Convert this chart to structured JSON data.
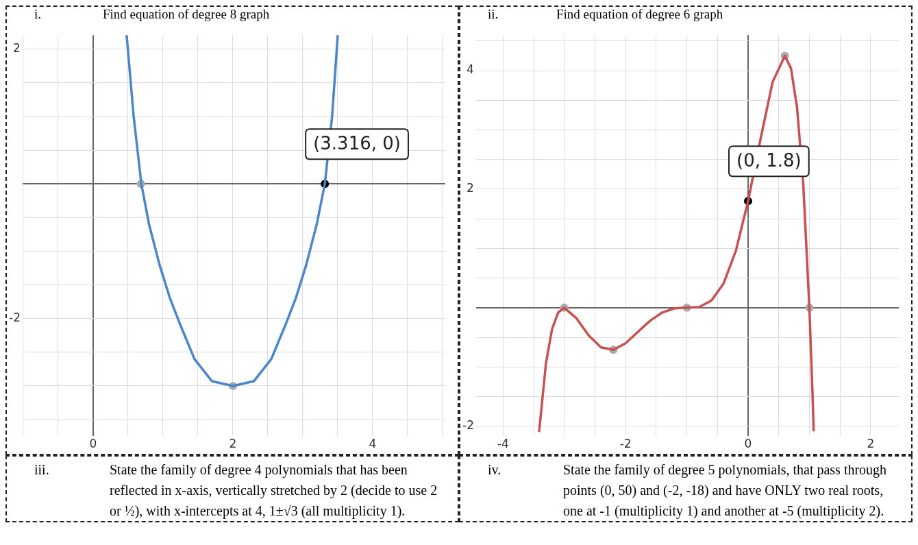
{
  "chart_data": [
    {
      "type": "line",
      "title": "Find equation of degree 8 graph",
      "xlim": [
        -1.01,
        5.04
      ],
      "ylim": [
        -3.74,
        2.21
      ],
      "xticks": [
        {
          "value": -1,
          "label": null
        },
        {
          "value": -0.5,
          "label": null
        },
        0,
        {
          "value": 0.5,
          "label": null
        },
        {
          "value": 1,
          "label": null
        },
        {
          "value": 1.5,
          "label": null
        },
        2,
        {
          "value": 2.5,
          "label": null
        },
        {
          "value": 3,
          "label": null
        },
        {
          "value": 3.5,
          "label": null
        },
        4,
        {
          "value": 4.5,
          "label": null
        },
        {
          "value": 5,
          "label": null
        }
      ],
      "yticks": [
        {
          "value": -3.5,
          "label": null
        },
        {
          "value": -3,
          "label": null
        },
        {
          "value": -2.5,
          "label": null
        },
        -2,
        {
          "value": -1.5,
          "label": null
        },
        {
          "value": -1,
          "label": null
        },
        {
          "value": -0.5,
          "label": null
        },
        {
          "value": 0,
          "label": null
        },
        {
          "value": 0.5,
          "label": null
        },
        {
          "value": 1,
          "label": null
        },
        {
          "value": 1.5,
          "label": null
        },
        2
      ],
      "grid": true,
      "marker": "none",
      "line_style": "solid",
      "series": [
        {
          "color": "#4a86c8",
          "x": [
            0.48,
            0.58,
            0.69,
            0.8,
            0.95,
            1.1,
            1.25,
            1.45,
            1.7,
            2,
            2.3,
            2.55,
            2.75,
            2.9,
            3.05,
            3.2,
            3.316,
            3.42,
            3.5
          ],
          "values": [
            2.2,
            1.0,
            0,
            -0.6,
            -1.2,
            -1.7,
            -2.1,
            -2.6,
            -2.93,
            -3,
            -2.93,
            -2.6,
            -2.1,
            -1.7,
            -1.2,
            -0.6,
            0,
            1.0,
            2.2
          ]
        },
        {
          "type": "scatter",
          "marker": "circle",
          "color": "#aaaaaa",
          "x": [
            0.684,
            2
          ],
          "values": [
            0,
            -3
          ]
        },
        {
          "type": "scatter",
          "marker": "circle",
          "color": "#000000",
          "x": [
            3.316
          ],
          "values": [
            0
          ]
        }
      ],
      "annotations": [
        "i.",
        {
          "text": "(3.316, 0)",
          "x": 3.316,
          "y": 0
        }
      ]
    },
    {
      "type": "line",
      "title": "Find equation of degree 6 graph",
      "xlim": [
        -4.44,
        2.46
      ],
      "ylim": [
        -2.16,
        4.6
      ],
      "xticks": [
        -4,
        {
          "value": -3.5,
          "label": null
        },
        {
          "value": -3,
          "label": null
        },
        {
          "value": -2.5,
          "label": null
        },
        -2,
        {
          "value": -1.5,
          "label": null
        },
        {
          "value": -1,
          "label": null
        },
        {
          "value": -0.5,
          "label": null
        },
        0,
        {
          "value": 0.5,
          "label": null
        },
        {
          "value": 1,
          "label": null
        },
        {
          "value": 1.5,
          "label": null
        },
        2
      ],
      "yticks": [
        -2,
        {
          "value": -1.5,
          "label": null
        },
        {
          "value": -1,
          "label": null
        },
        {
          "value": -0.5,
          "label": null
        },
        {
          "value": 0,
          "label": null
        },
        {
          "value": 0.5,
          "label": null
        },
        {
          "value": 1,
          "label": null
        },
        {
          "value": 1.5,
          "label": null
        },
        2,
        {
          "value": 2.5,
          "label": null
        },
        {
          "value": 3,
          "label": null
        },
        {
          "value": 3.5,
          "label": null
        },
        4,
        {
          "value": 4.5,
          "label": null
        }
      ],
      "grid": true,
      "marker": "none",
      "line_style": "solid",
      "series": [
        {
          "color": "#c85050",
          "x": [
            -3.41,
            -3.3,
            -3.2,
            -3.1,
            -3,
            -2.8,
            -2.6,
            -2.4,
            -2.2,
            -2,
            -1.8,
            -1.6,
            -1.4,
            -1.2,
            -1,
            -0.8,
            -0.6,
            -0.4,
            -0.2,
            0,
            0.2,
            0.4,
            0.6,
            0.7,
            0.8,
            0.9,
            1,
            1.05,
            1.07
          ],
          "values": [
            -2.08,
            -0.94,
            -0.36,
            -0.08,
            0,
            -0.18,
            -0.47,
            -0.67,
            -0.71,
            -0.6,
            -0.41,
            -0.22,
            -0.08,
            -0.01,
            0,
            0.01,
            0.12,
            0.41,
            0.96,
            1.8,
            2.83,
            3.81,
            4.25,
            4.04,
            3.37,
            2.09,
            0,
            -1.41,
            -2.07
          ]
        },
        {
          "type": "scatter",
          "marker": "circle",
          "color": "#aaaaaa",
          "x": [
            -3,
            -2.2,
            -1,
            1,
            0.6
          ],
          "values": [
            0,
            -0.71,
            0,
            0,
            4.25
          ]
        },
        {
          "type": "scatter",
          "marker": "circle",
          "color": "#000000",
          "x": [
            0
          ],
          "values": [
            1.8
          ]
        }
      ],
      "annotations": [
        "ii.",
        {
          "text": "(0, 1.8)",
          "x": 0,
          "y": 1.8
        }
      ]
    },
    {
      "type": "other",
      "title": "iii.",
      "annotations": [
        "State the family of degree 4 polynomials that has been reflected in x-axis, vertically stretched by 2 (decide to use 2 or ½), with x-intercepts at 4, 1±√3 (all multiplicity 1)."
      ]
    },
    {
      "type": "other",
      "title": "iv.",
      "annotations": [
        "State the family of degree 5 polynomials, that pass through points (0, 50) and (-2, -18) and have ONLY two real roots, one at -1 (multiplicity 1) and another at -5 (multiplicity 2)."
      ]
    }
  ]
}
